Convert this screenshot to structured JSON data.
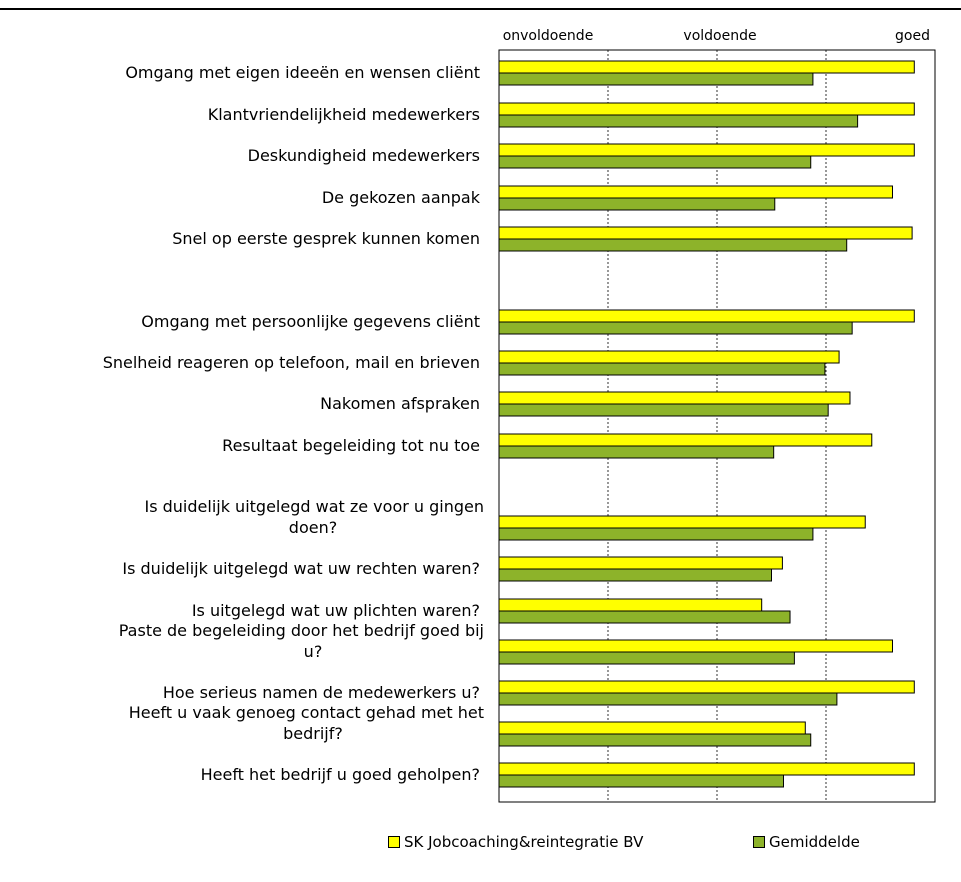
{
  "chart_data": {
    "type": "bar",
    "orientation": "horizontal",
    "scale_labels": [
      "onvoldoende",
      "voldoende",
      "goed"
    ],
    "xlim": [
      0,
      4
    ],
    "grid": true,
    "legend_position": "bottom",
    "categories": [
      "Omgang met eigen ideeën en wensen cliënt",
      "Klantvriendelijkheid medewerkers",
      "Deskundigheid medewerkers",
      "De gekozen aanpak",
      "Snel op eerste gesprek kunnen komen",
      "Omgang met persoonlijke gegevens cliënt",
      "Snelheid reageren op telefoon, mail en brieven",
      "Nakomen afspraken",
      "Resultaat begeleiding tot nu toe",
      "Is duidelijk uitgelegd wat ze voor u gingen doen?",
      "Is duidelijk uitgelegd wat uw rechten waren?",
      "Is uitgelegd wat uw plichten waren?",
      "Paste de begeleiding door het bedrijf goed bij u?",
      "Hoe serieus namen de medewerkers u?",
      "Heeft u vaak genoeg contact gehad met het bedrijf?",
      "Heeft het bedrijf u goed geholpen?"
    ],
    "series": [
      {
        "name": "SK Jobcoaching&reintegratie BV",
        "color": "#FFFF00",
        "values": [
          3.81,
          3.81,
          3.81,
          3.61,
          3.79,
          3.81,
          3.12,
          3.22,
          3.42,
          3.36,
          2.6,
          2.41,
          3.61,
          3.81,
          2.81,
          3.81
        ]
      },
      {
        "name": "Gemiddelde",
        "color": "#8DB32A",
        "values": [
          2.88,
          3.29,
          2.86,
          2.53,
          3.19,
          3.24,
          2.99,
          3.02,
          2.52,
          2.88,
          2.5,
          2.67,
          2.71,
          3.1,
          2.86,
          2.61
        ]
      }
    ]
  }
}
